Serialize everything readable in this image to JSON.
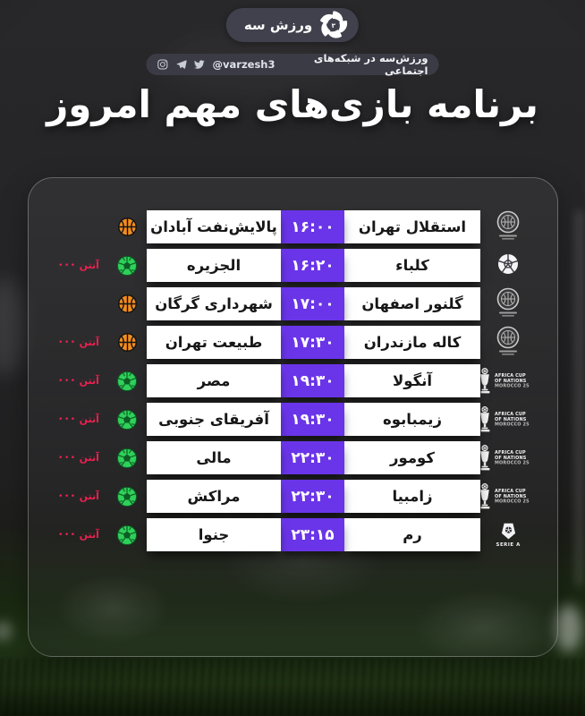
{
  "header": {
    "logo_text": "ورزش سه",
    "social": {
      "text": "ورزش‌سه در شبکه‌های اجتماعی",
      "handle": "@varzesh3",
      "icons": [
        "twitter-icon",
        "telegram-icon",
        "instagram-icon"
      ]
    }
  },
  "title": "برنامه بازی‌های مهم امروز",
  "anten": {
    "label": "آنتن",
    "dots": "•••"
  },
  "leagues": {
    "afcon": {
      "line1": "AFRICA CUP",
      "line2": "OF NATIONS",
      "line3": "MOROCCO 25"
    },
    "serie_a": {
      "label": "SERIE A"
    }
  },
  "colors": {
    "time_box_purple": "#6A35E8",
    "team_box_white": "#FFFFFF",
    "anten_red": "#EE2050",
    "basketball_orange": "#F28C1E",
    "football_green": "#2FD05A",
    "pill_dark": "#41414D"
  },
  "matches": [
    {
      "team_right": "استقلال تهران",
      "time": "۱۶:۰۰",
      "team_left": "پالایش‌نفت آبادان",
      "sport": "basketball",
      "league": "iran_basketball",
      "anten": false
    },
    {
      "team_right": "کلباء",
      "time": "۱۶:۲۰",
      "team_left": "الجزیره",
      "sport": "football",
      "league": "afc",
      "anten": true
    },
    {
      "team_right": "گلنور اصفهان",
      "time": "۱۷:۰۰",
      "team_left": "شهرداری گرگان",
      "sport": "basketball",
      "league": "iran_basketball",
      "anten": false
    },
    {
      "team_right": "کاله مازندران",
      "time": "۱۷:۳۰",
      "team_left": "طبیعت تهران",
      "sport": "basketball",
      "league": "iran_basketball",
      "anten": true
    },
    {
      "team_right": "آنگولا",
      "time": "۱۹:۳۰",
      "team_left": "مصر",
      "sport": "football",
      "league": "afcon",
      "anten": true
    },
    {
      "team_right": "زیمبابوه",
      "time": "۱۹:۳۰",
      "team_left": "آفریقای جنوبی",
      "sport": "football",
      "league": "afcon",
      "anten": true
    },
    {
      "team_right": "کومور",
      "time": "۲۲:۳۰",
      "team_left": "مالی",
      "sport": "football",
      "league": "afcon",
      "anten": true
    },
    {
      "team_right": "زامبیا",
      "time": "۲۲:۳۰",
      "team_left": "مراکش",
      "sport": "football",
      "league": "afcon",
      "anten": true
    },
    {
      "team_right": "رم",
      "time": "۲۳:۱۵",
      "team_left": "جنوا",
      "sport": "football",
      "league": "serie_a",
      "anten": true
    }
  ]
}
